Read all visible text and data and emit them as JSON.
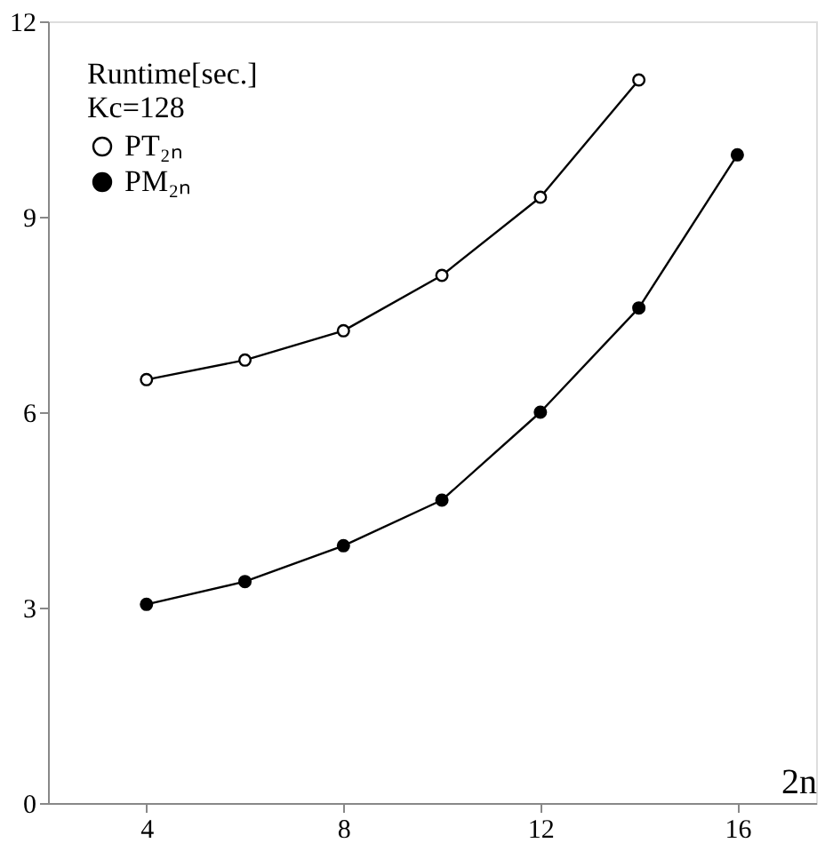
{
  "chart_data": {
    "type": "line",
    "xlabel": "2n",
    "legend_title": "Runtime[sec.]",
    "annotations": [
      "Kc=128"
    ],
    "x": [
      4,
      6,
      8,
      10,
      12,
      14,
      16
    ],
    "series": [
      {
        "name": "PT₂ₙ",
        "color": "#000000",
        "values": [
          6.5,
          6.8,
          7.25,
          8.1,
          9.3,
          11.1,
          null
        ]
      },
      {
        "name": "PM₂ₙ",
        "color": "#000000",
        "values": [
          3.05,
          3.4,
          3.95,
          4.65,
          6.0,
          7.6,
          9.95
        ]
      }
    ],
    "xlim": [
      2,
      17.6
    ],
    "xticks": [
      4,
      8,
      12,
      16
    ],
    "ylim": [
      0,
      12
    ],
    "yticks": [
      0,
      3,
      6,
      9,
      12
    ],
    "grid": false,
    "legend": "top left",
    "marker": "circle",
    "line_style": "solid"
  }
}
